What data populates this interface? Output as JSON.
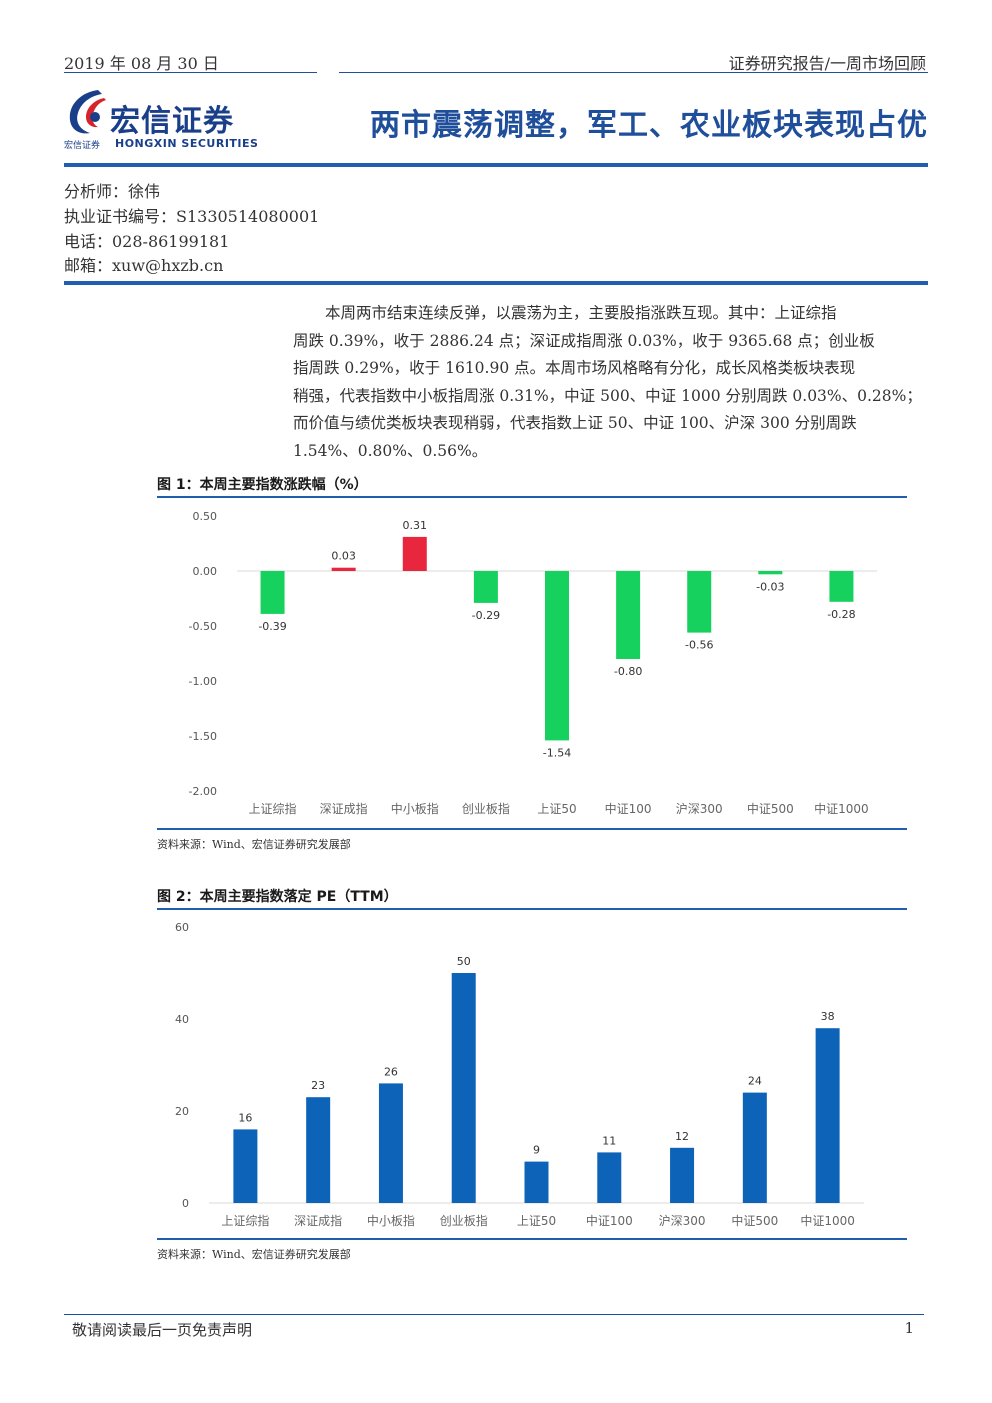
{
  "header": {
    "date": "2019 年 08 月 30 日",
    "category": "证券研究报告/一周市场回顾",
    "logo_name": "宏信证券",
    "logo_small": "宏信证券",
    "logo_en": "HONGXIN SECURITIES",
    "title": "两市震荡调整，军工、农业板块表现占优"
  },
  "analyst": {
    "name": "分析师：徐伟",
    "license": "执业证书编号：S1330514080001",
    "phone": "电话：028-86199181",
    "email": "邮箱：xuw@hxzb.cn"
  },
  "summary_lines": [
    "本周两市结束连续反弹，以震荡为主，主要股指涨跌互现。其中：上证综指",
    "周跌 0.39%，收于 2886.24 点；深证成指周涨 0.03%，收于 9365.68 点；创业板",
    "指周跌 0.29%，收于 1610.90 点。本周市场风格略有分化，成长风格类板块表现",
    "稍强，代表指数中小板指周涨 0.31%，中证 500、中证 1000 分别周跌 0.03%、0.28%；",
    "而价值与绩优类板块表现稍弱，代表指数上证 50、中证 100、沪深 300 分别周跌",
    "1.54%、0.80%、0.56%。"
  ],
  "colors": {
    "primary": "#1f4e9a",
    "up": "#e8263d",
    "down": "#16d15d",
    "pe_bar": "#0d63b8"
  },
  "figure1": {
    "title": "图 1：本周主要指数涨跌幅（%）",
    "source": "资料来源：Wind、宏信证券研究发展部"
  },
  "figure2": {
    "title": "图 2：本周主要指数落定 PE（TTM）",
    "source": "资料来源：Wind、宏信证券研究发展部"
  },
  "footer": {
    "disclaimer": "敬请阅读最后一页免责声明",
    "page": "1"
  },
  "chart_data": [
    {
      "type": "bar",
      "title": "图 1：本周主要指数涨跌幅（%）",
      "categories": [
        "上证综指",
        "深证成指",
        "中小板指",
        "创业板指",
        "上证50",
        "中证100",
        "沪深300",
        "中证500",
        "中证1000"
      ],
      "values": [
        -0.39,
        0.03,
        0.31,
        -0.29,
        -1.54,
        -0.8,
        -0.56,
        -0.03,
        -0.28
      ],
      "labels": [
        "-0.39",
        "0.03",
        "0.31",
        "-0.29",
        "-1.54",
        "-0.80",
        "-0.56",
        "-0.03",
        "-0.28"
      ],
      "yticks": [
        "0.50",
        "0.00",
        "-0.50",
        "-1.00",
        "-1.50",
        "-2.00"
      ],
      "ylim": [
        -2.0,
        0.5
      ],
      "xlabel": "",
      "ylabel": "",
      "grid": false
    },
    {
      "type": "bar",
      "title": "图 2：本周主要指数落定 PE（TTM）",
      "categories": [
        "上证综指",
        "深证成指",
        "中小板指",
        "创业板指",
        "上证50",
        "中证100",
        "沪深300",
        "中证500",
        "中证1000"
      ],
      "values": [
        16,
        23,
        26,
        50,
        9,
        11,
        12,
        24,
        38
      ],
      "labels": [
        "16",
        "23",
        "26",
        "50",
        "9",
        "11",
        "12",
        "24",
        "38"
      ],
      "yticks": [
        "60",
        "40",
        "20",
        "0"
      ],
      "ylim": [
        0,
        60
      ],
      "xlabel": "",
      "ylabel": "",
      "grid": false
    }
  ]
}
